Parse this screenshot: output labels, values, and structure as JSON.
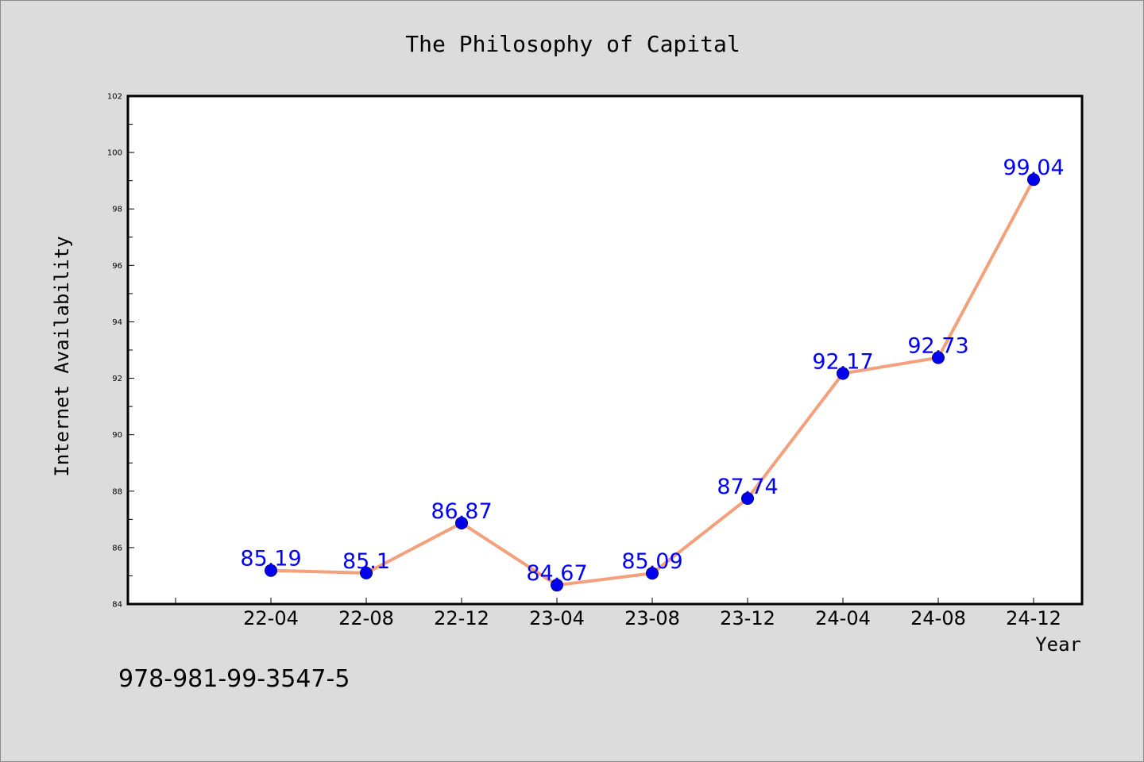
{
  "chart_data": {
    "type": "line",
    "title": "The Philosophy of Capital",
    "xlabel": "Year",
    "ylabel": "Internet Availability",
    "categories": [
      "22-04",
      "22-08",
      "22-12",
      "23-04",
      "23-08",
      "23-12",
      "24-04",
      "24-08",
      "24-12"
    ],
    "series": [
      {
        "values": [
          85.19,
          85.1,
          86.87,
          84.67,
          85.09,
          87.74,
          92.17,
          92.73,
          99.04
        ],
        "data_labels": [
          "85.19",
          "85.1",
          "86.87",
          "84.67",
          "85.09",
          "87.74",
          "92.17",
          "92.73",
          "99.04"
        ]
      }
    ],
    "ylim": [
      84,
      102
    ],
    "yticks": [
      84,
      86,
      88,
      90,
      92,
      94,
      96,
      98,
      100,
      102
    ],
    "ytick_labels": [
      "84",
      "86",
      "88",
      "90",
      "92",
      "94",
      "96",
      "98",
      "100",
      "102"
    ],
    "grid": false,
    "colors": {
      "line": "#f4a07a",
      "marker": "#0000ee",
      "label": "#0000ff",
      "page_background": "#dcdcdc",
      "plot_background": "#ffffff"
    }
  },
  "annotation": "978-981-99-3547-5"
}
